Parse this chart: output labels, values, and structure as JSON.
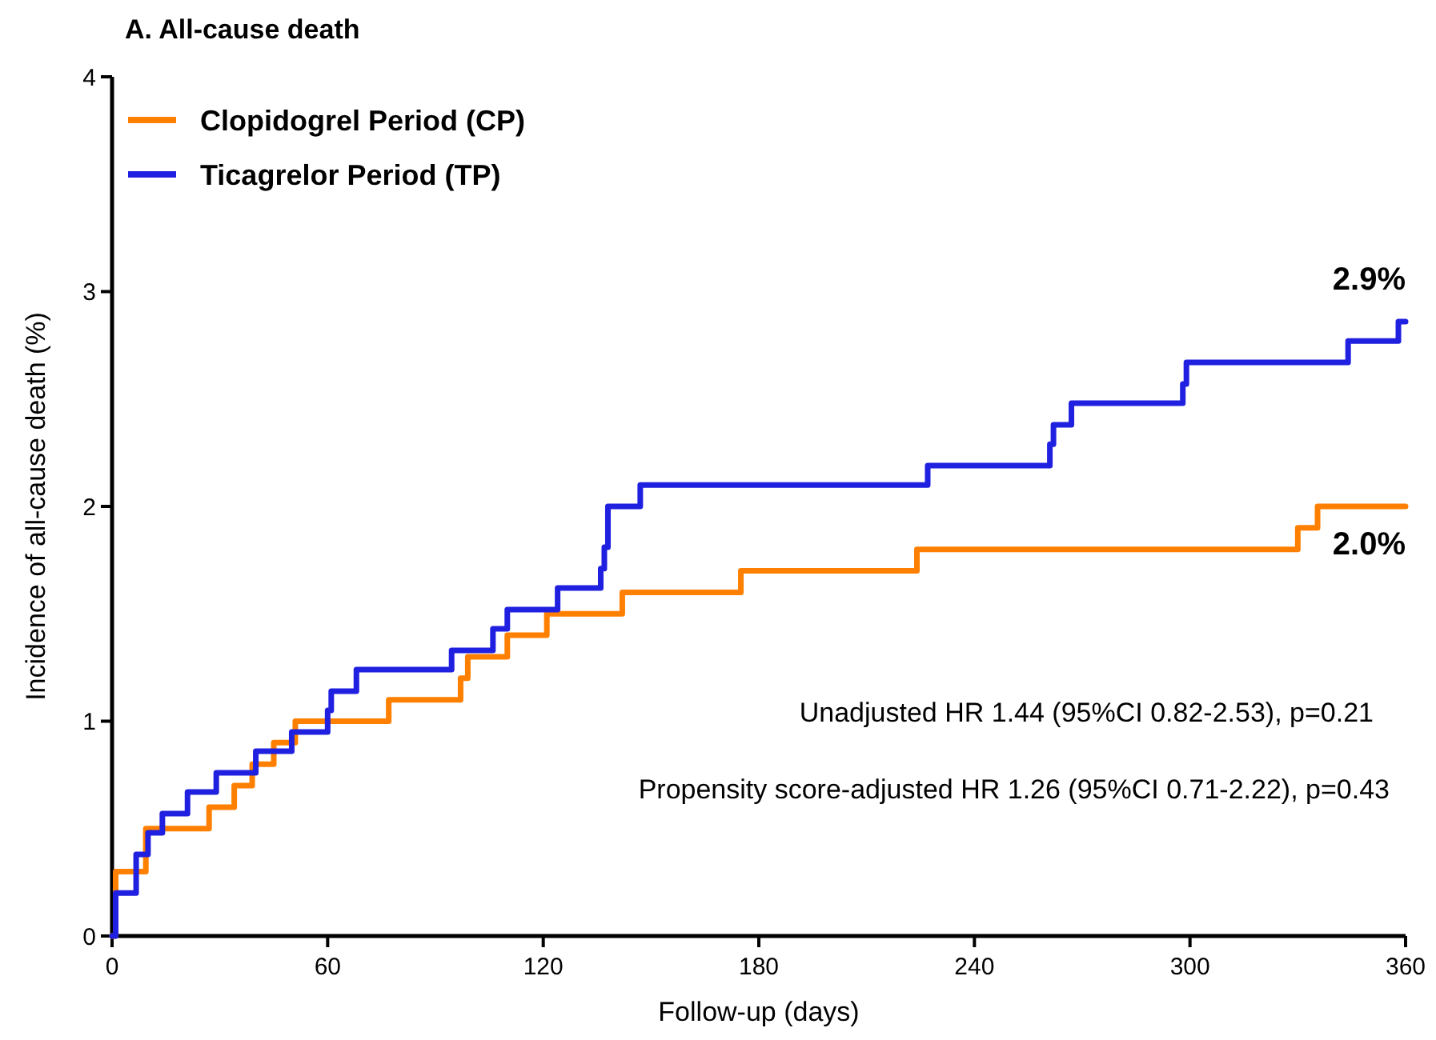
{
  "chart_data": {
    "type": "step",
    "title": "A. All-cause death",
    "xlabel": "Follow-up (days)",
    "ylabel": "Incidence of all-cause death (%)",
    "xlim": [
      0,
      360
    ],
    "xticks": [
      0,
      60,
      120,
      180,
      240,
      300,
      360
    ],
    "ylim": [
      0,
      4
    ],
    "yticks": [
      0,
      1,
      2,
      3,
      4
    ],
    "grid": false,
    "legend": "top left",
    "line_style": "solid",
    "marker": "none",
    "series": [
      {
        "name": "Clopidogrel Period (CP)",
        "color": "#ff8000",
        "x": [
          0,
          1,
          9.4,
          27,
          34,
          39,
          45,
          51,
          77,
          97,
          99,
          110,
          121,
          142,
          175,
          224,
          330,
          335.5,
          360
        ],
        "values": [
          0,
          0.3,
          0.5,
          0.6,
          0.7,
          0.8,
          0.9,
          1.0,
          1.1,
          1.2,
          1.3,
          1.4,
          1.5,
          1.6,
          1.7,
          1.8,
          1.9,
          2.0,
          2.0
        ]
      },
      {
        "name": "Ticagrelor Period (TP)",
        "color": "#2020e0",
        "x": [
          0,
          1,
          6.7,
          10,
          14,
          21,
          29,
          40,
          50,
          60,
          61,
          68,
          94.5,
          106,
          110,
          124,
          136,
          137,
          138,
          147,
          227,
          261,
          262,
          267,
          298,
          299,
          344,
          358,
          360
        ],
        "values": [
          0,
          0.2,
          0.38,
          0.48,
          0.57,
          0.67,
          0.76,
          0.86,
          0.95,
          1.05,
          1.14,
          1.24,
          1.33,
          1.43,
          1.52,
          1.62,
          1.71,
          1.81,
          2.0,
          2.1,
          2.19,
          2.29,
          2.38,
          2.48,
          2.57,
          2.67,
          2.77,
          2.86,
          2.86
        ]
      }
    ],
    "annotations": [
      {
        "text": "2.9%",
        "x": 360,
        "y": 2.86
      },
      {
        "text": "2.0%",
        "x": 360,
        "y": 2.0
      },
      "Unadjusted HR 1.44 (95%CI 0.82-2.53), p=0.21",
      "Propensity score-adjusted  HR 1.26 (95%CI 0.71-2.22), p=0.43"
    ]
  }
}
